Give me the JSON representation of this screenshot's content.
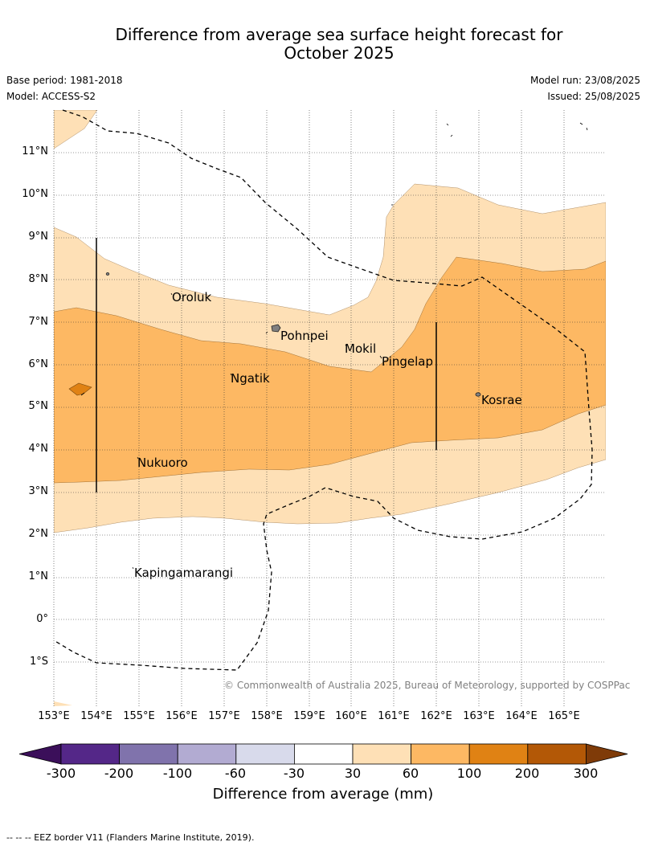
{
  "title_line1": "Difference from average sea surface height forecast for",
  "title_line2": "October 2025",
  "meta": {
    "base_period": "Base period: 1981-2018",
    "model": "Model: ACCESS-S2",
    "model_run": "Model run: 23/08/2025",
    "issued": "Issued: 25/08/2025"
  },
  "latitudes": [
    "11°N",
    "10°N",
    "9°N",
    "8°N",
    "7°N",
    "6°N",
    "5°N",
    "4°N",
    "3°N",
    "2°N",
    "1°N",
    "0°",
    "1°S"
  ],
  "longitudes": [
    "153°E",
    "154°E",
    "155°E",
    "156°E",
    "157°E",
    "158°E",
    "159°E",
    "160°E",
    "161°E",
    "162°E",
    "163°E",
    "164°E",
    "165°E"
  ],
  "places": [
    "Oroluk",
    "Pohnpei",
    "Mokil",
    "Pingelap",
    "Ngatik",
    "Kosrae",
    "Nukuoro",
    "Kapingamarangi"
  ],
  "copyright": "© Commonwealth of Australia 2025, Bureau of Meteorology, supported by COSPPac",
  "colorbar": {
    "title": "Difference from average (mm)",
    "ticks": [
      "-300",
      "-200",
      "-100",
      "-60",
      "-30",
      "30",
      "60",
      "100",
      "200",
      "300"
    ],
    "colors": [
      "#3b0f5a",
      "#542788",
      "#8073ac",
      "#b2abd2",
      "#d8daeb",
      "#ffffff",
      "#fee0b6",
      "#fdb863",
      "#e08214",
      "#b35806",
      "#7f3b08"
    ]
  },
  "legend_note": "--  --  -- EEZ border V11 (Flanders Marine Institute, 2019)."
}
